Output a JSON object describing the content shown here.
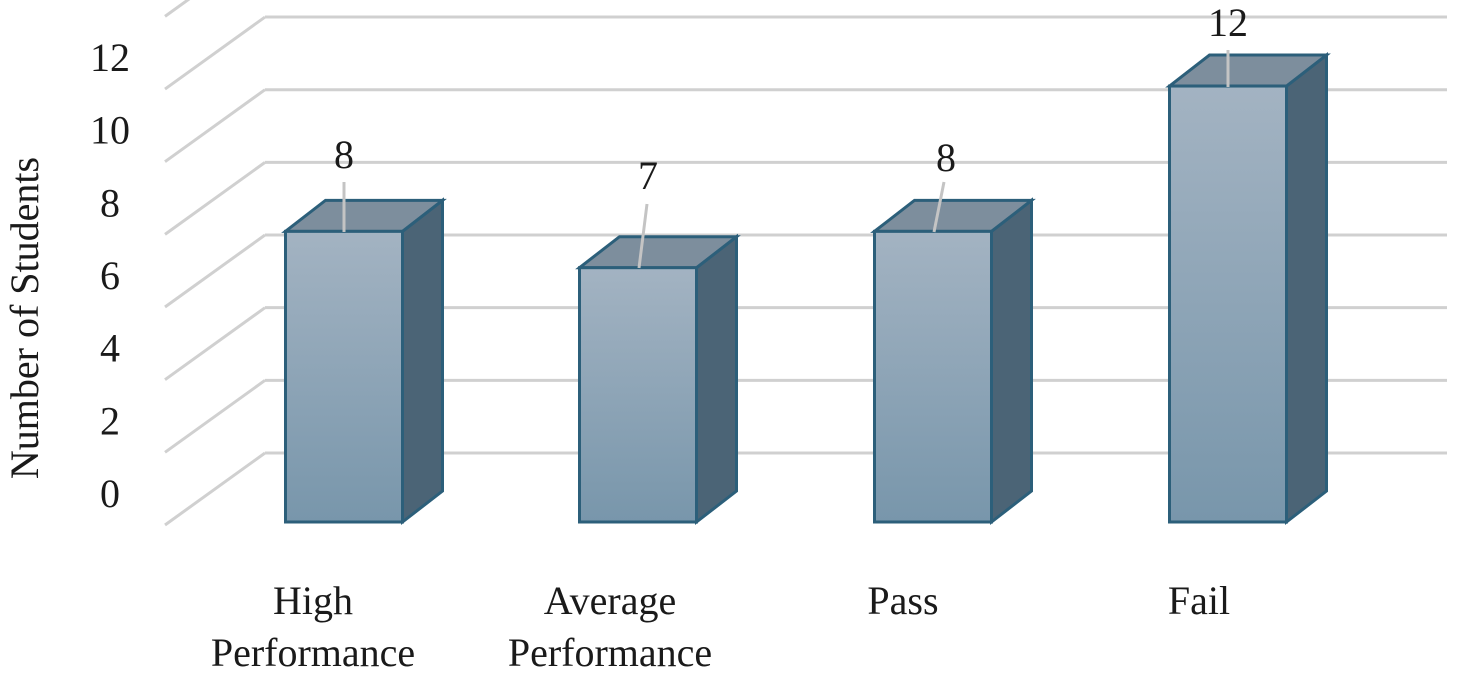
{
  "chart_data": {
    "type": "bar",
    "categories": [
      "High\nPerformance",
      "Average\nPerformance",
      "Pass",
      "Fail"
    ],
    "values": [
      8,
      7,
      8,
      12
    ],
    "data_labels": [
      "8",
      "7",
      "8",
      "12"
    ],
    "title": "",
    "xlabel": "",
    "ylabel": "Number of Students",
    "ylim": [
      0,
      14
    ],
    "y_ticks": [
      "0",
      "2",
      "4",
      "6",
      "8",
      "10",
      "12"
    ],
    "grid": true,
    "style": "3d-column",
    "colors": {
      "bar_front_top": "#a3b3c2",
      "bar_front_bottom": "#7896ab",
      "bar_side": "#4b6476",
      "bar_top": "#7d8e9d",
      "bar_outline": "#2c5f7a",
      "gridline": "#d0d0d0"
    }
  }
}
